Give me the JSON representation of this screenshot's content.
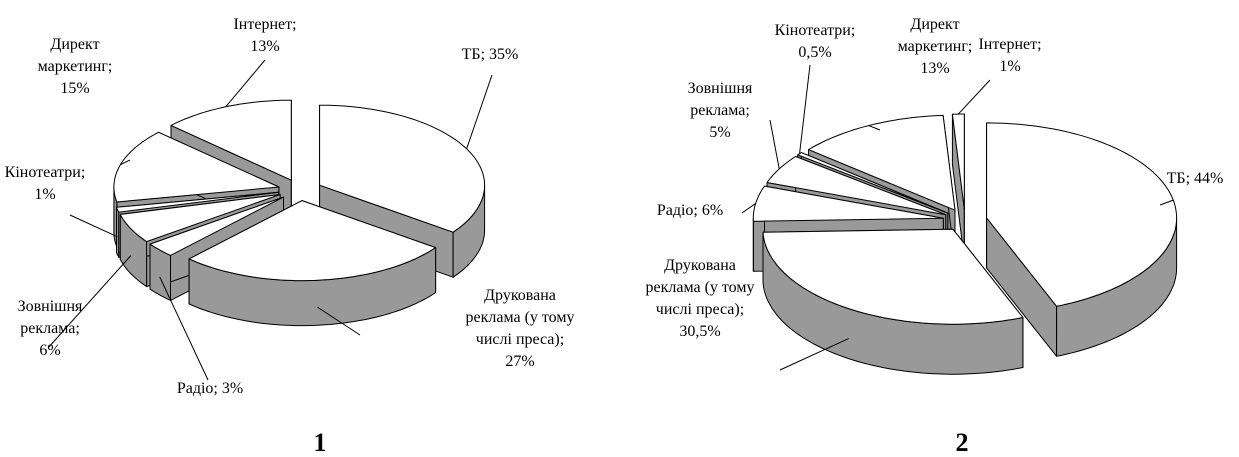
{
  "chart_data": [
    {
      "type": "pie",
      "title": "1",
      "separator": ";",
      "categories": [
        "ТБ",
        "Друкована реклама (у тому числі преса)",
        "Радіо",
        "Зовнішня реклама",
        "Кінотеатри",
        "Директ маркетинг",
        "Інтернет"
      ],
      "values": [
        35,
        27,
        3,
        6,
        1,
        15,
        13
      ],
      "value_labels": [
        "35%",
        "27%",
        "3%",
        "6%",
        "1%",
        "15%",
        "13%"
      ],
      "color": "#ffffff",
      "side_color": "#999999"
    },
    {
      "type": "pie",
      "title": "2",
      "separator": ";",
      "categories": [
        "ТБ",
        "Друкована реклама (у тому числі преса)",
        "Радіо",
        "Зовнішня реклама",
        "Кінотеатри",
        "Директ маркетинг",
        "Інтернет"
      ],
      "values": [
        44,
        30.5,
        6,
        5,
        0.5,
        13,
        1
      ],
      "value_labels": [
        "44%",
        "30,5%",
        "6%",
        "5%",
        "0,5%",
        "13%",
        "1%"
      ],
      "color": "#ffffff",
      "side_color": "#999999"
    }
  ]
}
